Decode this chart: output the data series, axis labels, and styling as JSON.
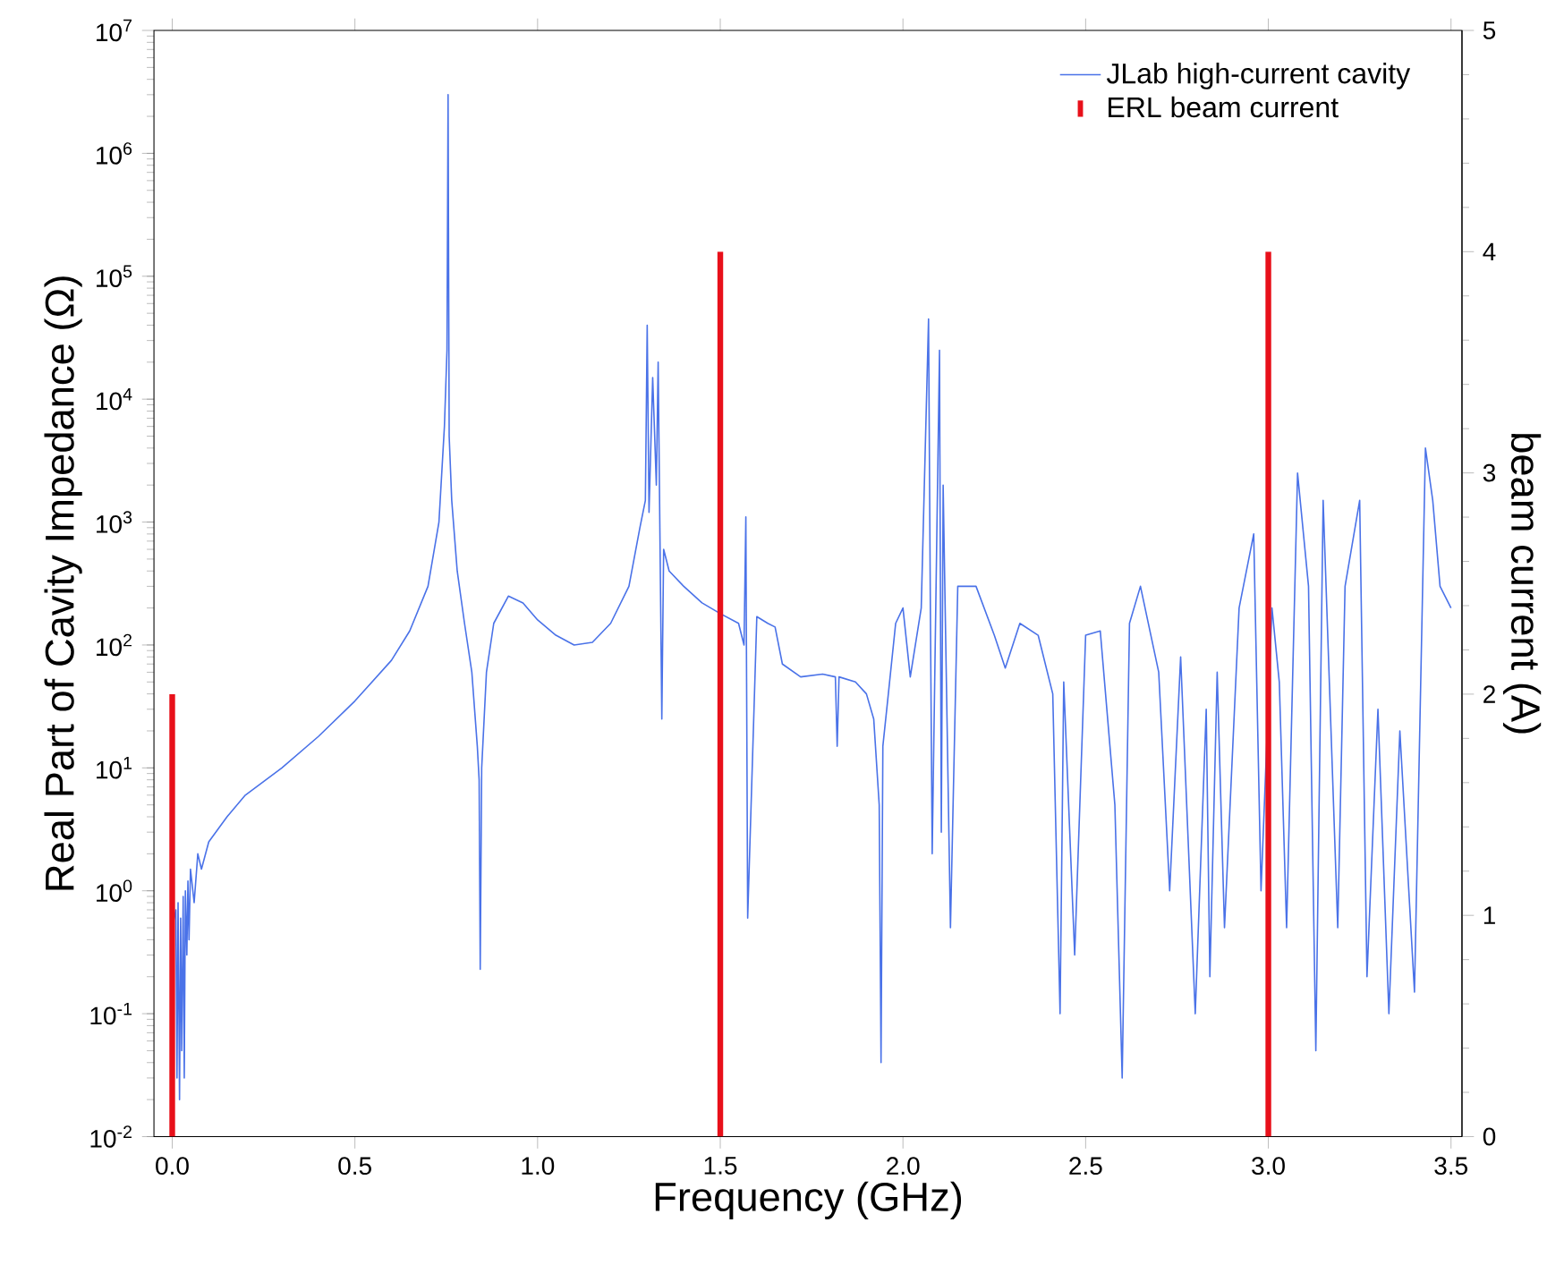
{
  "chart_data": {
    "type": "line",
    "xlabel": "Frequency (GHz)",
    "ylabel": "Real Part of Cavity Impedance (Ω)",
    "y2label": "beam current (A)",
    "log": "y",
    "legend": "top right",
    "xlim": [
      -0.05,
      3.53
    ],
    "xticks": [
      {
        "value": 0,
        "label": "0.0"
      },
      0.5,
      {
        "value": 1,
        "label": "1.0"
      },
      1.5,
      {
        "value": 2,
        "label": "2.0"
      },
      2.5,
      {
        "value": 3,
        "label": "3.0"
      },
      3.5
    ],
    "ylim": [
      0.01,
      10000000
    ],
    "yticks": [
      {
        "value": 0.01,
        "label": "10$^{-2}$"
      },
      {
        "value": 0.1,
        "label": "10$^{-1}$"
      },
      {
        "value": 1,
        "label": "10$^{0}$"
      },
      {
        "value": 10,
        "label": "10$^{1}$"
      },
      {
        "value": 100,
        "label": "10$^{2}$"
      },
      {
        "value": 1000,
        "label": "10$^{3}$"
      },
      {
        "value": 10000,
        "label": "10$^{4}$"
      },
      {
        "value": 100000,
        "label": "10$^{5}$"
      },
      {
        "value": 1000000,
        "label": "10$^{6}$"
      },
      {
        "value": 10000000,
        "label": "10$^{7}$"
      }
    ],
    "y2lim": [
      0,
      5
    ],
    "y2ticks": [
      0,
      1,
      2,
      3,
      4,
      5
    ],
    "series": [
      {
        "name": "JLab high-current cavity",
        "color": "#4a72e8",
        "x": [
          0.0,
          0.005,
          0.01,
          0.013,
          0.016,
          0.02,
          0.023,
          0.026,
          0.03,
          0.033,
          0.036,
          0.04,
          0.043,
          0.046,
          0.05,
          0.06,
          0.07,
          0.08,
          0.1,
          0.15,
          0.2,
          0.3,
          0.4,
          0.5,
          0.6,
          0.65,
          0.7,
          0.73,
          0.745,
          0.752,
          0.755,
          0.758,
          0.765,
          0.78,
          0.8,
          0.82,
          0.835,
          0.84,
          0.843,
          0.847,
          0.86,
          0.88,
          0.92,
          0.96,
          1.0,
          1.05,
          1.1,
          1.15,
          1.2,
          1.25,
          1.28,
          1.295,
          1.3,
          1.305,
          1.315,
          1.325,
          1.33,
          1.34,
          1.345,
          1.36,
          1.4,
          1.45,
          1.5,
          1.55,
          1.565,
          1.57,
          1.575,
          1.6,
          1.63,
          1.65,
          1.67,
          1.72,
          1.78,
          1.815,
          1.82,
          1.825,
          1.87,
          1.9,
          1.92,
          1.935,
          1.94,
          1.945,
          1.96,
          1.98,
          2.0,
          2.02,
          2.05,
          2.07,
          2.075,
          2.08,
          2.1,
          2.105,
          2.11,
          2.13,
          2.15,
          2.2,
          2.25,
          2.28,
          2.32,
          2.37,
          2.41,
          2.43,
          2.44,
          2.47,
          2.5,
          2.54,
          2.58,
          2.6,
          2.62,
          2.65,
          2.7,
          2.73,
          2.76,
          2.8,
          2.83,
          2.84,
          2.86,
          2.88,
          2.92,
          2.96,
          2.98,
          3.01,
          3.03,
          3.05,
          3.08,
          3.11,
          3.13,
          3.15,
          3.19,
          3.21,
          3.25,
          3.27,
          3.3,
          3.33,
          3.36,
          3.4,
          3.43,
          3.45,
          3.47,
          3.5
        ],
        "values": [
          0.5,
          null,
          0.7,
          0.03,
          0.8,
          0.02,
          0.6,
          0.05,
          0.9,
          0.03,
          1,
          0.3,
          1.2,
          0.4,
          1.5,
          0.8,
          2,
          1.5,
          2.5,
          4,
          6,
          10,
          18,
          35,
          75,
          130,
          300,
          1000,
          6000,
          25000,
          3000000,
          5000,
          1500,
          400,
          150,
          60,
          15,
          8,
          0.23,
          10,
          60,
          150,
          250,
          220,
          160,
          120,
          100,
          105,
          150,
          300,
          900,
          1500,
          40000,
          1200,
          15000,
          2000,
          20000,
          25,
          600,
          400,
          300,
          220,
          180,
          150,
          100,
          1100,
          0.6,
          170,
          150,
          140,
          70,
          55,
          58,
          55,
          15,
          55,
          50,
          40,
          25,
          5,
          0.04,
          15,
          40,
          150,
          200,
          55,
          200,
          45000,
          200,
          2,
          25000,
          3,
          2000,
          0.5,
          300,
          300,
          120,
          65,
          150,
          120,
          40,
          0.1,
          50,
          0.3,
          120,
          130,
          5,
          0.03,
          150,
          300,
          60,
          1,
          80,
          0.1,
          30,
          0.2,
          60,
          0.5,
          200,
          800,
          1,
          200,
          50,
          0.5,
          2500,
          300,
          0.05,
          1500,
          0.5,
          300,
          1500,
          0.2,
          30,
          0.1,
          20,
          0.15,
          4000,
          1500,
          300,
          200
        ]
      },
      {
        "name": "ERL beam current",
        "type": "bar",
        "axis": "y2",
        "color": "#e8101a",
        "x": [
          0,
          1.5,
          3.0
        ],
        "values": [
          2,
          4,
          4
        ]
      }
    ]
  }
}
